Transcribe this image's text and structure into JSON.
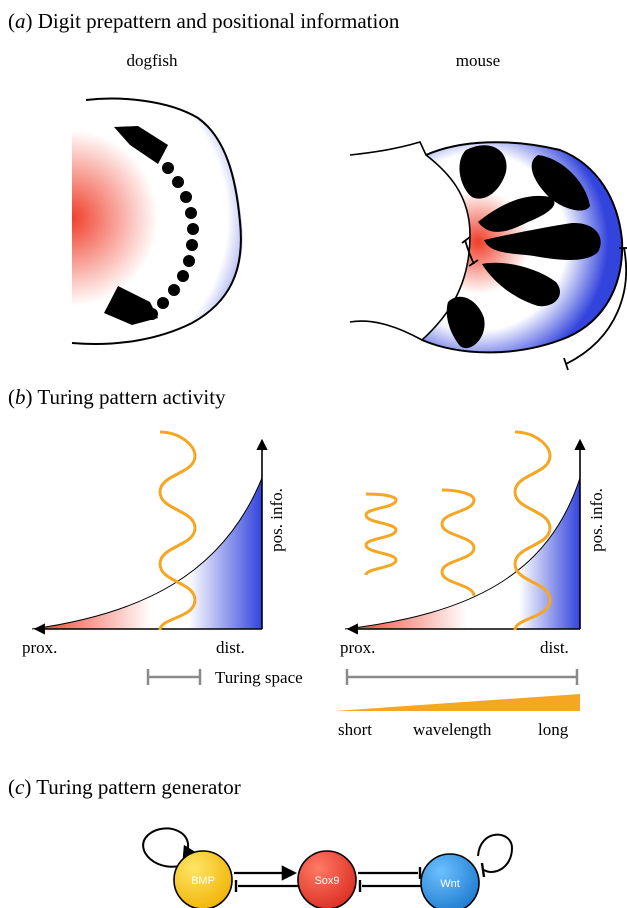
{
  "panel_a": {
    "letter": "a",
    "title": "Digit prepattern and positional information",
    "left_label": "dogfish",
    "right_label": "mouse"
  },
  "panel_b": {
    "letter": "b",
    "title": "Turing pattern activity",
    "left": {
      "prox": "prox.",
      "dist": "dist.",
      "yaxis": "pos. info.",
      "scale_label": "Turing space"
    },
    "right": {
      "prox": "prox.",
      "dist": "dist.",
      "yaxis": "pos. info.",
      "wedge_short": "short",
      "wedge_mid": "wavelength",
      "wedge_long": "long"
    }
  },
  "panel_c": {
    "letter": "c",
    "title": "Turing pattern generator",
    "nodes": {
      "bmp": "BMP",
      "sox9": "Sox9",
      "wnt": "Wnt"
    }
  },
  "colors": {
    "red": "#f03c28",
    "blue": "#3344dd",
    "orange": "#f5a623",
    "grey": "#8a8a8a",
    "bmp": "#f5c518",
    "sox9": "#ea3b2e",
    "wnt": "#2d8fe0"
  }
}
